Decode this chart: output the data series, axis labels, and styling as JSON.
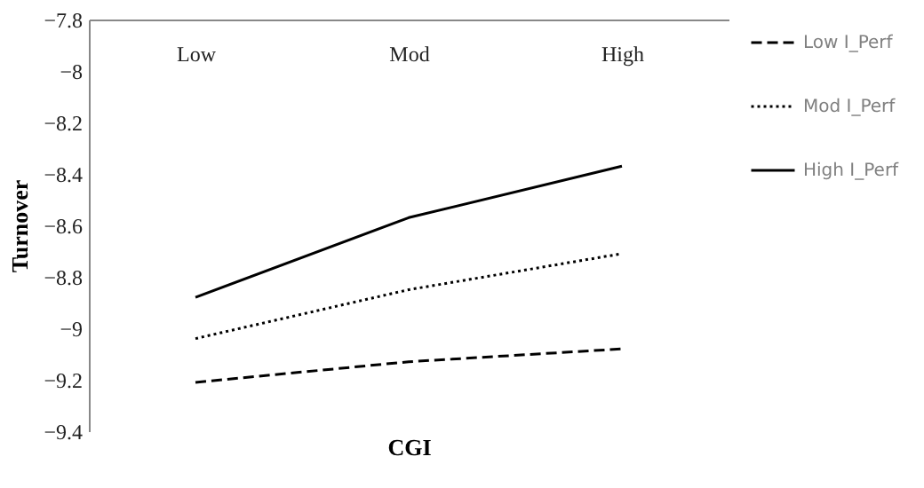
{
  "chart_data": {
    "type": "line",
    "xlabel": "CGI",
    "ylabel": "Turnover",
    "categories": [
      "Low",
      "Mod",
      "High"
    ],
    "ylim": [
      -9.4,
      -7.8
    ],
    "yticks": [
      -9.4,
      -9.2,
      -9,
      -8.8,
      -8.6,
      -8.4,
      -8.2,
      -8,
      -7.8
    ],
    "legend": "right",
    "series": [
      {
        "name": "Low I_Perf",
        "color": "#000000",
        "line_style": "dashed",
        "values": [
          -9.21,
          -9.13,
          -9.08
        ]
      },
      {
        "name": "Mod I_Perf",
        "color": "#000000",
        "line_style": "dotted",
        "values": [
          -9.04,
          -8.85,
          -8.71
        ]
      },
      {
        "name": "High I_Perf",
        "color": "#000000",
        "line_style": "solid",
        "values": [
          -8.88,
          -8.57,
          -8.37
        ]
      }
    ]
  }
}
